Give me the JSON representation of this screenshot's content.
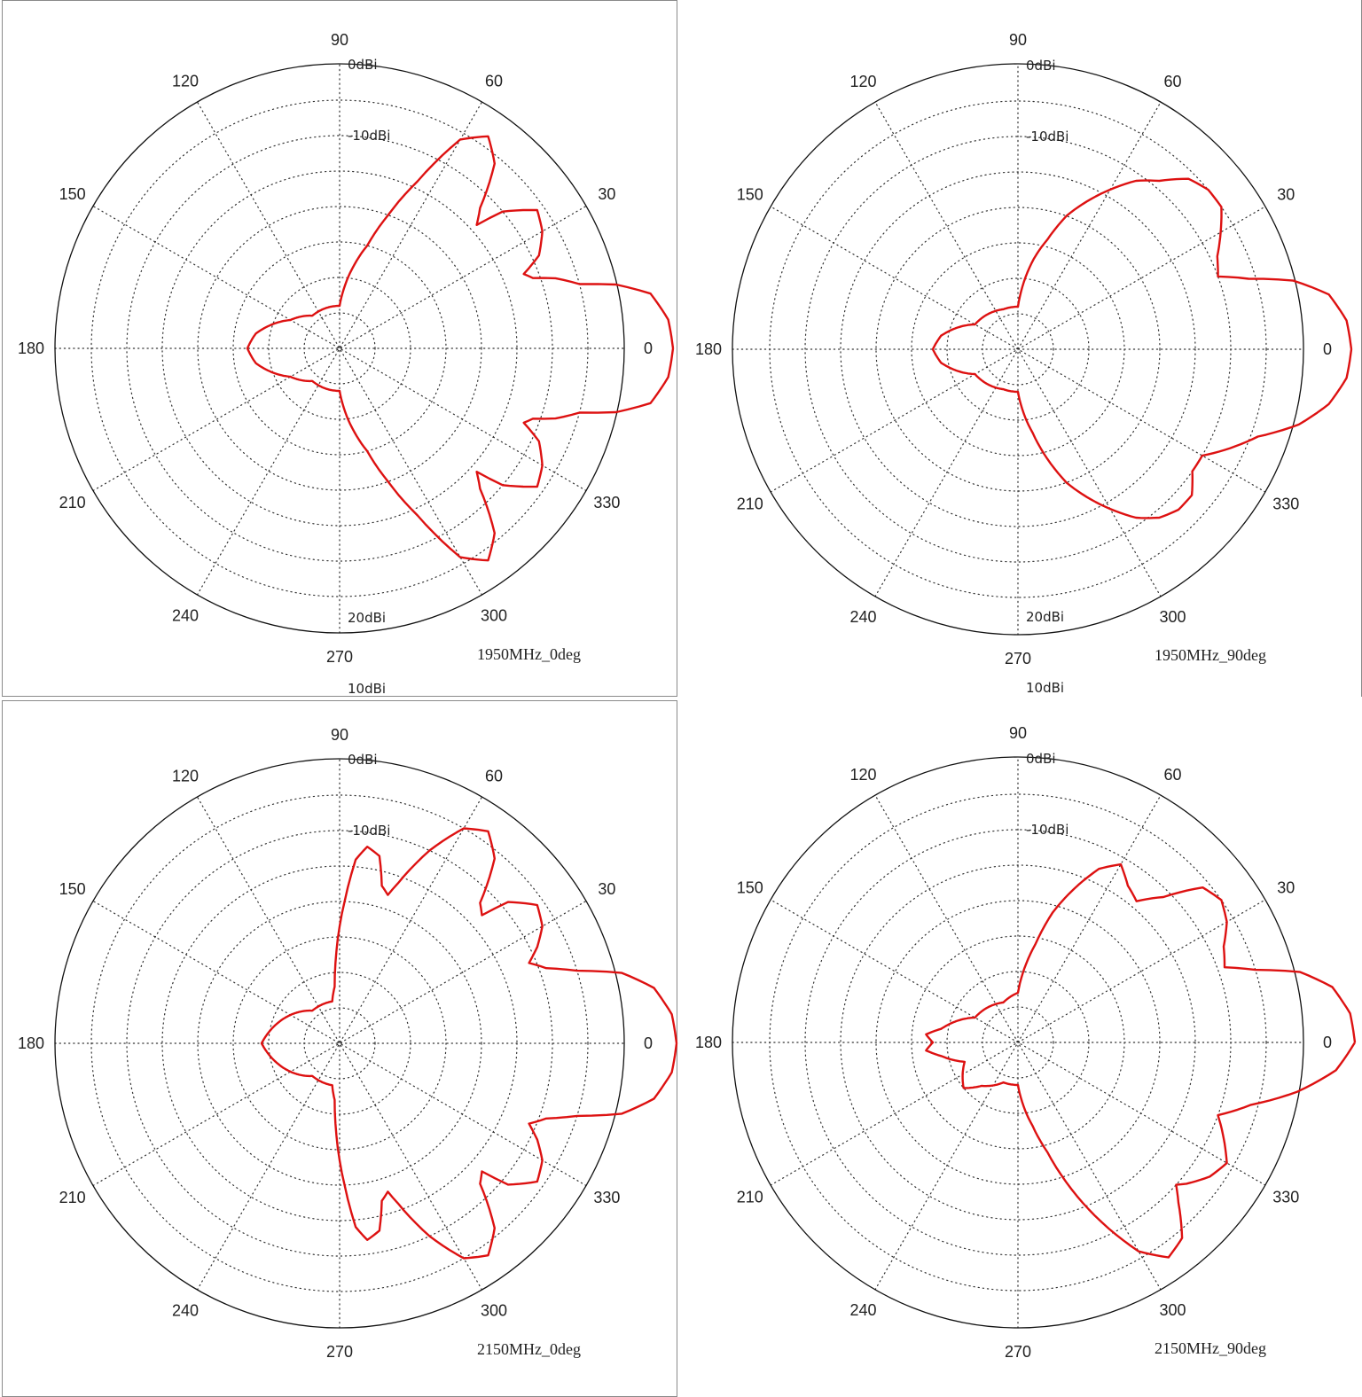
{
  "colors": {
    "trace": "#dd1111",
    "grid": "#333333",
    "frame": "#111111"
  },
  "chart_data": [
    {
      "type": "polar",
      "caption": "1950MHz_0deg",
      "angle_ticks": [
        "0",
        "30",
        "60",
        "90",
        "120",
        "150",
        "180",
        "210",
        "240",
        "270",
        "300",
        "330"
      ],
      "radial_ticks": [
        "-10dBi",
        "0dBi",
        "10dBi",
        "20dBi"
      ],
      "rlim_dbi": [
        -40,
        25
      ],
      "grid": true,
      "series": [
        {
          "angle_deg": [
            0,
            5,
            10,
            13,
            15,
            18,
            20,
            22,
            25,
            30,
            35,
            40,
            42,
            45,
            50,
            55,
            60,
            65,
            70,
            75,
            80,
            90,
            100,
            110,
            130,
            150,
            170,
            180,
            190,
            210,
            230,
            250,
            260,
            270,
            280,
            285,
            290,
            295,
            300,
            305,
            310,
            315,
            318,
            320,
            325,
            330,
            335,
            338,
            340,
            342,
            345,
            347,
            350,
            355,
            360
          ],
          "gain_dbi": [
            7,
            6.5,
            4.5,
            0,
            -5,
            -8,
            -11,
            -12,
            -9,
            -7,
            -6,
            -10,
            -14,
            -12,
            -6,
            -3.5,
            -6,
            -14,
            -20,
            -25,
            -28,
            -34,
            -34,
            -34,
            -34,
            -32,
            -28,
            -27,
            -28,
            -32,
            -34,
            -34,
            -34,
            -34,
            -28,
            -25,
            -20,
            -14,
            -6,
            -3.5,
            -6,
            -12,
            -14,
            -10,
            -6,
            -7,
            -9,
            -12,
            -11,
            -8,
            -5,
            0,
            4.5,
            6.5,
            7
          ]
        }
      ]
    },
    {
      "type": "polar",
      "caption": "1950MHz_90deg",
      "angle_ticks": [
        "0",
        "30",
        "60",
        "90",
        "120",
        "150",
        "180",
        "210",
        "240",
        "270",
        "300",
        "330"
      ],
      "radial_ticks": [
        "-10dBi",
        "0dBi",
        "10dBi",
        "20dBi"
      ],
      "rlim_dbi": [
        -40,
        25
      ],
      "grid": true,
      "series": [
        {
          "angle_deg": [
            0,
            5,
            10,
            14,
            17,
            20,
            25,
            30,
            35,
            40,
            45,
            50,
            55,
            60,
            65,
            70,
            75,
            80,
            90,
            110,
            150,
            170,
            180,
            190,
            210,
            250,
            270,
            280,
            285,
            290,
            295,
            300,
            305,
            310,
            315,
            320,
            325,
            330,
            335,
            340,
            343,
            345,
            350,
            355,
            360
          ],
          "gain_dbi": [
            7,
            6.5,
            4.5,
            0,
            -6,
            -10,
            -9,
            -7,
            -5,
            -5,
            -6,
            -9,
            -11,
            -14,
            -17,
            -20,
            -24,
            -27,
            -34,
            -34,
            -33,
            -29,
            -28,
            -29,
            -33,
            -34,
            -34,
            -28,
            -24,
            -20,
            -17,
            -14,
            -11,
            -9,
            -8,
            -8,
            -10,
            -10,
            -7,
            -4,
            -1,
            1,
            4.5,
            6.5,
            7
          ]
        }
      ]
    },
    {
      "type": "polar",
      "caption": "2150MHz_0deg",
      "angle_ticks": [
        "0",
        "30",
        "60",
        "90",
        "120",
        "150",
        "180",
        "210",
        "240",
        "270",
        "300",
        "330"
      ],
      "radial_ticks": [
        "-10dBi",
        "0dBi",
        "10dBi",
        "20dBi"
      ],
      "rlim_dbi": [
        -40,
        25
      ],
      "grid": true,
      "series": [
        {
          "angle_deg": [
            0,
            5,
            10,
            14,
            17,
            20,
            23,
            26,
            30,
            35,
            40,
            42,
            45,
            50,
            55,
            60,
            65,
            70,
            72,
            75,
            78,
            82,
            85,
            88,
            92,
            95,
            100,
            110,
            130,
            150,
            170,
            180,
            190,
            210,
            230,
            250,
            260,
            265,
            268,
            272,
            275,
            278,
            282,
            285,
            288,
            290,
            295,
            300,
            305,
            310,
            315,
            318,
            320,
            325,
            330,
            334,
            337,
            340,
            343,
            346,
            350,
            355,
            360
          ],
          "gain_dbi": [
            7.5,
            7,
            5,
            1,
            -5,
            -9,
            -11,
            -9,
            -7,
            -6,
            -9,
            -13,
            -12,
            -6,
            -3.5,
            -5,
            -10,
            -16,
            -18,
            -17,
            -13,
            -12,
            -14,
            -20,
            -27,
            -32,
            -34,
            -34,
            -34,
            -32,
            -30,
            -29,
            -30,
            -32,
            -34,
            -34,
            -34,
            -32,
            -27,
            -20,
            -14,
            -12,
            -13,
            -17,
            -18,
            -16,
            -10,
            -5,
            -3.5,
            -6,
            -12,
            -13,
            -9,
            -6,
            -7,
            -9,
            -11,
            -9,
            -5,
            1,
            5,
            7,
            7.5
          ]
        }
      ]
    },
    {
      "type": "polar",
      "caption": "2150MHz_90deg",
      "angle_ticks": [
        "0",
        "30",
        "60",
        "90",
        "120",
        "150",
        "180",
        "210",
        "240",
        "270",
        "300",
        "330"
      ],
      "radial_ticks": [
        "-10dBi",
        "0dBi",
        "10dBi",
        "20dBi"
      ],
      "rlim_dbi": [
        -40,
        25
      ],
      "grid": true,
      "series": [
        {
          "angle_deg": [
            0,
            5,
            10,
            14,
            17,
            20,
            25,
            30,
            35,
            40,
            45,
            50,
            55,
            60,
            65,
            70,
            75,
            80,
            90,
            110,
            150,
            170,
            175,
            180,
            185,
            190,
            200,
            210,
            220,
            230,
            250,
            270,
            280,
            285,
            290,
            295,
            300,
            305,
            310,
            315,
            318,
            320,
            325,
            330,
            335,
            340,
            345,
            350,
            355,
            360
          ],
          "gain_dbi": [
            7.5,
            7,
            5,
            1,
            -5,
            -9,
            -8,
            -6,
            -5,
            -6,
            -11,
            -14,
            -13,
            -11,
            -13,
            -17,
            -21,
            -26,
            -33,
            -34,
            -33,
            -29,
            -27,
            -28,
            -27,
            -29,
            -32,
            -31,
            -30,
            -32,
            -34,
            -34,
            -28,
            -24,
            -18,
            -12,
            -6,
            -3,
            -4,
            -8,
            -10,
            -9,
            -7,
            -6,
            -8,
            -10,
            -6,
            0,
            5,
            7.5
          ]
        }
      ]
    }
  ]
}
